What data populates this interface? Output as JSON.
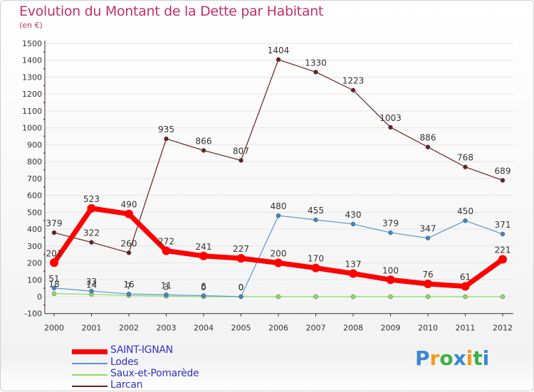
{
  "title": "Evolution du Montant de la Dette par Habitant",
  "unit": "(en €)",
  "colors": {
    "title": "#c0306a",
    "axis": "#333333",
    "grid": "#e4e4e4",
    "tick_dot": "#cc0000"
  },
  "chart_data": {
    "type": "line",
    "categories": [
      "2000",
      "2001",
      "2002",
      "2003",
      "2004",
      "2005",
      "2006",
      "2007",
      "2008",
      "2009",
      "2010",
      "2011",
      "2012"
    ],
    "ylim": [
      -100,
      1500
    ],
    "yticks": [
      -100,
      0,
      100,
      200,
      300,
      400,
      500,
      600,
      700,
      800,
      900,
      1000,
      1100,
      1200,
      1300,
      1400,
      1500
    ],
    "grid": "horizontal",
    "legend_position": "bottom-left",
    "series": [
      {
        "name": "Larcan",
        "color": "#6b1f1f",
        "marker": "#6b1f1f",
        "width": 1.2,
        "r": 3,
        "values": [
          379,
          322,
          260,
          935,
          866,
          807,
          1404,
          1330,
          1223,
          1003,
          886,
          768,
          689
        ],
        "labels": [
          "379",
          "322",
          "260",
          "935",
          "866",
          "807",
          "1404",
          "1330",
          "1223",
          "1003",
          "886",
          "768",
          "689"
        ]
      },
      {
        "name": "Saux-et-Pomarède",
        "color": "#88dd66",
        "marker": "#88dd66",
        "width": 1.2,
        "r": 3,
        "values": [
          18,
          14,
          7,
          3,
          0,
          0,
          0,
          0,
          0,
          0,
          0,
          0,
          0
        ],
        "labels": [
          "18",
          "14",
          "7",
          "3",
          "0",
          "0",
          "",
          "",
          "",
          "",
          "",
          "",
          ""
        ]
      },
      {
        "name": "Lodes",
        "color": "#5599cc",
        "marker": "#3f86c4",
        "width": 1.2,
        "r": 3,
        "values": [
          51,
          33,
          16,
          11,
          6,
          0,
          480,
          455,
          430,
          379,
          347,
          450,
          371
        ],
        "labels": [
          "51",
          "33",
          "16",
          "11",
          "6",
          "0",
          "480",
          "455",
          "430",
          "379",
          "347",
          "450",
          "371"
        ]
      },
      {
        "name": "SAINT-IGNAN",
        "color": "#ff0000",
        "marker": "#ff0000",
        "width": 7,
        "r": 6,
        "values": [
          201,
          523,
          490,
          272,
          241,
          227,
          200,
          170,
          137,
          100,
          76,
          61,
          221
        ],
        "labels": [
          "201",
          "523",
          "490",
          "272",
          "241",
          "227",
          "200",
          "170",
          "137",
          "100",
          "76",
          "61",
          "221"
        ]
      }
    ],
    "legend": [
      "SAINT-IGNAN",
      "Lodes",
      "Saux-et-Pomarède",
      "Larcan"
    ]
  },
  "legend_items": [
    {
      "label": "SAINT-IGNAN",
      "color": "#ff0000",
      "thickness": "7"
    },
    {
      "label": "Lodes",
      "color": "#5599cc",
      "thickness": "2"
    },
    {
      "label": "Saux-et-Pomarède",
      "color": "#88dd66",
      "thickness": "2"
    },
    {
      "label": "Larcan",
      "color": "#6b1f1f",
      "thickness": "2"
    }
  ],
  "logo": {
    "letters": [
      "P",
      "r",
      "o",
      "x",
      "i",
      "t",
      "i"
    ],
    "colors": [
      "#3a86d6",
      "#f29a1d",
      "#3fae49",
      "#3a86d6",
      "#f29a1d",
      "#3fae49",
      "#3a86d6"
    ]
  }
}
